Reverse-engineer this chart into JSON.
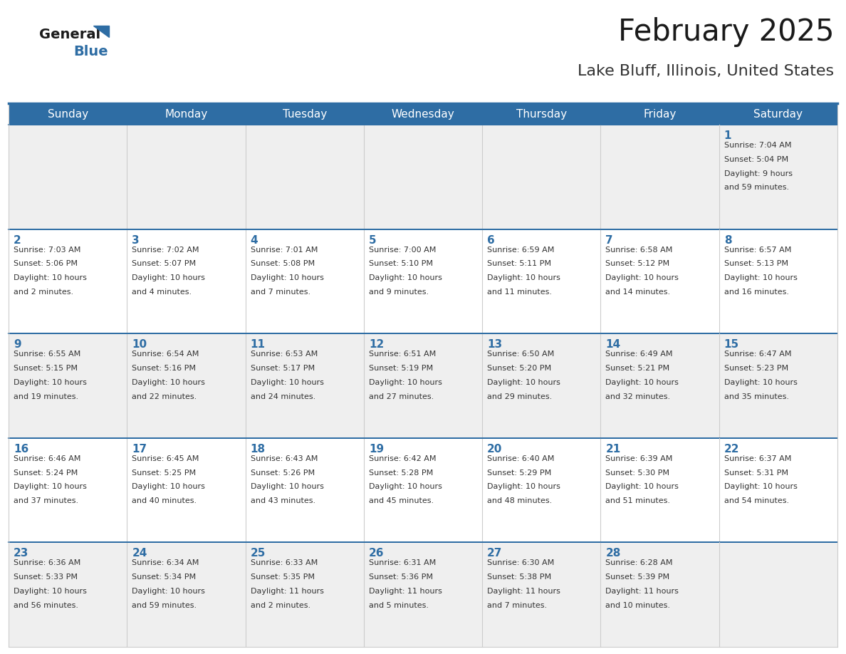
{
  "title": "February 2025",
  "subtitle": "Lake Bluff, Illinois, United States",
  "header_bg_color": "#2E6DA4",
  "header_text_color": "#FFFFFF",
  "title_color": "#1a1a1a",
  "subtitle_color": "#333333",
  "day_number_color": "#2E6DA4",
  "cell_text_color": "#333333",
  "cell_bg_color": "#EFEFEF",
  "cell_bg_color_alt": "#FFFFFF",
  "row_separator_color": "#2E6DA4",
  "col_separator_color": "#CCCCCC",
  "outer_border_color": "#CCCCCC",
  "days_of_week": [
    "Sunday",
    "Monday",
    "Tuesday",
    "Wednesday",
    "Thursday",
    "Friday",
    "Saturday"
  ],
  "weeks": [
    [
      null,
      null,
      null,
      null,
      null,
      null,
      1
    ],
    [
      2,
      3,
      4,
      5,
      6,
      7,
      8
    ],
    [
      9,
      10,
      11,
      12,
      13,
      14,
      15
    ],
    [
      16,
      17,
      18,
      19,
      20,
      21,
      22
    ],
    [
      23,
      24,
      25,
      26,
      27,
      28,
      null
    ]
  ],
  "cell_data": {
    "1": {
      "sunrise": "7:04 AM",
      "sunset": "5:04 PM",
      "daylight_h": "9 hours",
      "daylight_m": "and 59 minutes."
    },
    "2": {
      "sunrise": "7:03 AM",
      "sunset": "5:06 PM",
      "daylight_h": "10 hours",
      "daylight_m": "and 2 minutes."
    },
    "3": {
      "sunrise": "7:02 AM",
      "sunset": "5:07 PM",
      "daylight_h": "10 hours",
      "daylight_m": "and 4 minutes."
    },
    "4": {
      "sunrise": "7:01 AM",
      "sunset": "5:08 PM",
      "daylight_h": "10 hours",
      "daylight_m": "and 7 minutes."
    },
    "5": {
      "sunrise": "7:00 AM",
      "sunset": "5:10 PM",
      "daylight_h": "10 hours",
      "daylight_m": "and 9 minutes."
    },
    "6": {
      "sunrise": "6:59 AM",
      "sunset": "5:11 PM",
      "daylight_h": "10 hours",
      "daylight_m": "and 11 minutes."
    },
    "7": {
      "sunrise": "6:58 AM",
      "sunset": "5:12 PM",
      "daylight_h": "10 hours",
      "daylight_m": "and 14 minutes."
    },
    "8": {
      "sunrise": "6:57 AM",
      "sunset": "5:13 PM",
      "daylight_h": "10 hours",
      "daylight_m": "and 16 minutes."
    },
    "9": {
      "sunrise": "6:55 AM",
      "sunset": "5:15 PM",
      "daylight_h": "10 hours",
      "daylight_m": "and 19 minutes."
    },
    "10": {
      "sunrise": "6:54 AM",
      "sunset": "5:16 PM",
      "daylight_h": "10 hours",
      "daylight_m": "and 22 minutes."
    },
    "11": {
      "sunrise": "6:53 AM",
      "sunset": "5:17 PM",
      "daylight_h": "10 hours",
      "daylight_m": "and 24 minutes."
    },
    "12": {
      "sunrise": "6:51 AM",
      "sunset": "5:19 PM",
      "daylight_h": "10 hours",
      "daylight_m": "and 27 minutes."
    },
    "13": {
      "sunrise": "6:50 AM",
      "sunset": "5:20 PM",
      "daylight_h": "10 hours",
      "daylight_m": "and 29 minutes."
    },
    "14": {
      "sunrise": "6:49 AM",
      "sunset": "5:21 PM",
      "daylight_h": "10 hours",
      "daylight_m": "and 32 minutes."
    },
    "15": {
      "sunrise": "6:47 AM",
      "sunset": "5:23 PM",
      "daylight_h": "10 hours",
      "daylight_m": "and 35 minutes."
    },
    "16": {
      "sunrise": "6:46 AM",
      "sunset": "5:24 PM",
      "daylight_h": "10 hours",
      "daylight_m": "and 37 minutes."
    },
    "17": {
      "sunrise": "6:45 AM",
      "sunset": "5:25 PM",
      "daylight_h": "10 hours",
      "daylight_m": "and 40 minutes."
    },
    "18": {
      "sunrise": "6:43 AM",
      "sunset": "5:26 PM",
      "daylight_h": "10 hours",
      "daylight_m": "and 43 minutes."
    },
    "19": {
      "sunrise": "6:42 AM",
      "sunset": "5:28 PM",
      "daylight_h": "10 hours",
      "daylight_m": "and 45 minutes."
    },
    "20": {
      "sunrise": "6:40 AM",
      "sunset": "5:29 PM",
      "daylight_h": "10 hours",
      "daylight_m": "and 48 minutes."
    },
    "21": {
      "sunrise": "6:39 AM",
      "sunset": "5:30 PM",
      "daylight_h": "10 hours",
      "daylight_m": "and 51 minutes."
    },
    "22": {
      "sunrise": "6:37 AM",
      "sunset": "5:31 PM",
      "daylight_h": "10 hours",
      "daylight_m": "and 54 minutes."
    },
    "23": {
      "sunrise": "6:36 AM",
      "sunset": "5:33 PM",
      "daylight_h": "10 hours",
      "daylight_m": "and 56 minutes."
    },
    "24": {
      "sunrise": "6:34 AM",
      "sunset": "5:34 PM",
      "daylight_h": "10 hours",
      "daylight_m": "and 59 minutes."
    },
    "25": {
      "sunrise": "6:33 AM",
      "sunset": "5:35 PM",
      "daylight_h": "11 hours",
      "daylight_m": "and 2 minutes."
    },
    "26": {
      "sunrise": "6:31 AM",
      "sunset": "5:36 PM",
      "daylight_h": "11 hours",
      "daylight_m": "and 5 minutes."
    },
    "27": {
      "sunrise": "6:30 AM",
      "sunset": "5:38 PM",
      "daylight_h": "11 hours",
      "daylight_m": "and 7 minutes."
    },
    "28": {
      "sunrise": "6:28 AM",
      "sunset": "5:39 PM",
      "daylight_h": "11 hours",
      "daylight_m": "and 10 minutes."
    }
  },
  "header_fontsize": 11,
  "day_num_fontsize": 11,
  "cell_text_fontsize": 8,
  "title_fontsize": 30,
  "subtitle_fontsize": 16
}
